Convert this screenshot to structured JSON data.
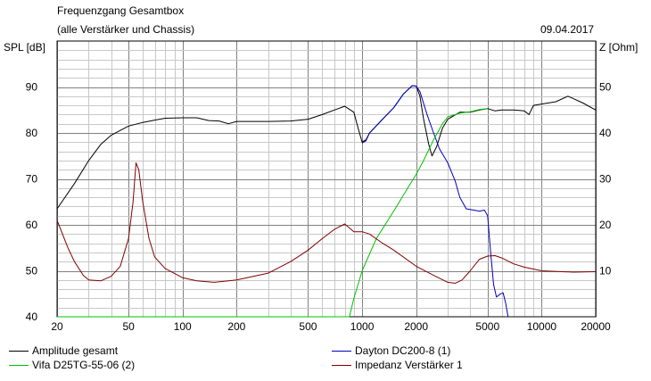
{
  "chart_data": {
    "type": "line",
    "title": "Frequenzgang Gesamtbox",
    "subtitle": "(alle Verstärker und Chassis)",
    "date": "09.04.2017",
    "ylabel_left": "SPL [dB]",
    "ylabel_right": "Z [Ohm]",
    "xscale": "log",
    "xlim": [
      20,
      20000
    ],
    "ylim_left": [
      40,
      100
    ],
    "ylim_right": [
      0,
      60
    ],
    "grid": true,
    "x_ticks": [
      20,
      50,
      100,
      200,
      500,
      1000,
      2000,
      5000,
      10000,
      20000
    ],
    "x_tick_labels": [
      "20",
      "50",
      "100",
      "200",
      "500",
      "1000",
      "2000",
      "5000",
      "10000",
      "20000"
    ],
    "y_left_ticks": [
      40,
      50,
      60,
      70,
      80,
      90
    ],
    "y_right_ticks": [
      10,
      20,
      30,
      40,
      50
    ],
    "legend_placement": "bottom",
    "series": [
      {
        "name": "Amplitude gesamt",
        "color": "#000000",
        "axis": "left",
        "points": [
          [
            20,
            63.5
          ],
          [
            25,
            69
          ],
          [
            30,
            74
          ],
          [
            35,
            77.5
          ],
          [
            40,
            79.5
          ],
          [
            50,
            81.5
          ],
          [
            60,
            82.3
          ],
          [
            70,
            82.8
          ],
          [
            80,
            83.2
          ],
          [
            100,
            83.3
          ],
          [
            120,
            83.3
          ],
          [
            140,
            82.7
          ],
          [
            160,
            82.6
          ],
          [
            180,
            82.0
          ],
          [
            200,
            82.5
          ],
          [
            300,
            82.5
          ],
          [
            400,
            82.6
          ],
          [
            500,
            83.0
          ],
          [
            600,
            84.0
          ],
          [
            700,
            85.0
          ],
          [
            800,
            85.8
          ],
          [
            900,
            84.5
          ],
          [
            950,
            81
          ],
          [
            1000,
            78
          ],
          [
            1050,
            78.5
          ],
          [
            1100,
            80
          ],
          [
            1300,
            83
          ],
          [
            1500,
            85.5
          ],
          [
            1700,
            88.5
          ],
          [
            1900,
            90.3
          ],
          [
            2000,
            90.2
          ],
          [
            2100,
            88
          ],
          [
            2200,
            83
          ],
          [
            2350,
            77.5
          ],
          [
            2450,
            75
          ],
          [
            2600,
            77
          ],
          [
            2800,
            81
          ],
          [
            3000,
            83
          ],
          [
            3500,
            84.5
          ],
          [
            4000,
            84.5
          ],
          [
            4500,
            85
          ],
          [
            5000,
            85.3
          ],
          [
            5500,
            84.8
          ],
          [
            6000,
            85
          ],
          [
            7000,
            85
          ],
          [
            8000,
            84.8
          ],
          [
            8500,
            84
          ],
          [
            9000,
            86
          ],
          [
            10000,
            86.3
          ],
          [
            12000,
            86.8
          ],
          [
            14000,
            88
          ],
          [
            15000,
            87.5
          ],
          [
            17000,
            86.5
          ],
          [
            20000,
            85
          ]
        ]
      },
      {
        "name": "Dayton DC200-8 (1)",
        "color": "#0000c0",
        "axis": "left",
        "points": [
          [
            1000,
            77.8
          ],
          [
            1050,
            78.3
          ],
          [
            1100,
            80
          ],
          [
            1300,
            83
          ],
          [
            1500,
            85.5
          ],
          [
            1700,
            88.5
          ],
          [
            1900,
            90.3
          ],
          [
            2000,
            90.2
          ],
          [
            2100,
            89
          ],
          [
            2300,
            84
          ],
          [
            2500,
            80
          ],
          [
            2700,
            76.5
          ],
          [
            3000,
            73.5
          ],
          [
            3300,
            69.5
          ],
          [
            3500,
            66
          ],
          [
            3800,
            63.5
          ],
          [
            4500,
            63
          ],
          [
            4800,
            63.2
          ],
          [
            5000,
            62
          ],
          [
            5200,
            54
          ],
          [
            5400,
            47
          ],
          [
            5600,
            44.3
          ],
          [
            5900,
            45
          ],
          [
            6100,
            45.2
          ],
          [
            6300,
            43
          ],
          [
            6500,
            40
          ]
        ]
      },
      {
        "name": "Vifa D25TG-55-06 (2)",
        "color": "#00c000",
        "axis": "left",
        "points": [
          [
            20,
            40
          ],
          [
            850,
            40
          ],
          [
            900,
            44
          ],
          [
            1000,
            50
          ],
          [
            1200,
            57
          ],
          [
            1500,
            63
          ],
          [
            1700,
            66.5
          ],
          [
            2000,
            71
          ],
          [
            2200,
            74
          ],
          [
            2500,
            78.5
          ],
          [
            2800,
            82
          ],
          [
            3000,
            83.5
          ],
          [
            3500,
            84.3
          ],
          [
            4000,
            84.6
          ],
          [
            4500,
            85.1
          ],
          [
            5000,
            85.3
          ]
        ]
      },
      {
        "name": "Impedanz Verstärker 1",
        "color": "#800000",
        "axis": "right",
        "points": [
          [
            20,
            21
          ],
          [
            23,
            15
          ],
          [
            25,
            12
          ],
          [
            28,
            9
          ],
          [
            30,
            8
          ],
          [
            35,
            7.8
          ],
          [
            40,
            8.8
          ],
          [
            45,
            11
          ],
          [
            50,
            17
          ],
          [
            53,
            25
          ],
          [
            55,
            33.5
          ],
          [
            57,
            32
          ],
          [
            60,
            25
          ],
          [
            65,
            17
          ],
          [
            70,
            13
          ],
          [
            80,
            10.5
          ],
          [
            100,
            8.5
          ],
          [
            120,
            7.8
          ],
          [
            150,
            7.5
          ],
          [
            200,
            8
          ],
          [
            300,
            9.5
          ],
          [
            400,
            12
          ],
          [
            500,
            14.5
          ],
          [
            600,
            17
          ],
          [
            700,
            19
          ],
          [
            800,
            20.2
          ],
          [
            900,
            18.5
          ],
          [
            1000,
            18.5
          ],
          [
            1100,
            18
          ],
          [
            1300,
            16
          ],
          [
            1500,
            14.5
          ],
          [
            2000,
            11
          ],
          [
            2500,
            9
          ],
          [
            3000,
            7.5
          ],
          [
            3300,
            7.3
          ],
          [
            3600,
            8
          ],
          [
            4000,
            10
          ],
          [
            4500,
            12.5
          ],
          [
            5000,
            13.2
          ],
          [
            5500,
            13.3
          ],
          [
            6000,
            12.8
          ],
          [
            7000,
            11.5
          ],
          [
            8000,
            10.8
          ],
          [
            10000,
            10
          ],
          [
            15000,
            9.7
          ],
          [
            20000,
            9.8
          ]
        ]
      }
    ]
  }
}
